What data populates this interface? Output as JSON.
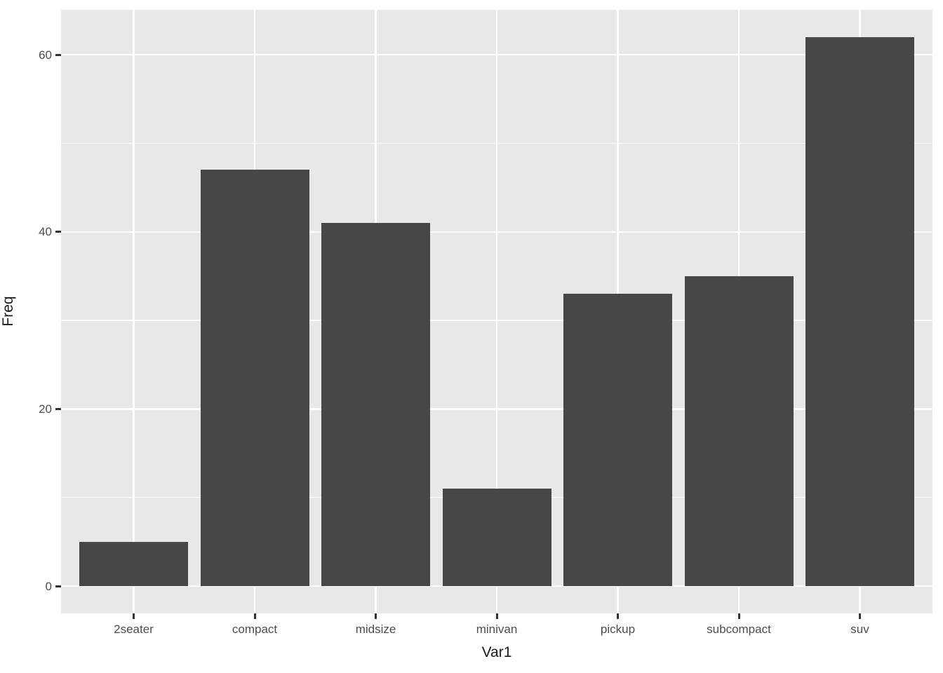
{
  "chart_data": {
    "type": "bar",
    "title": "",
    "xlabel": "Var1",
    "ylabel": "Freq",
    "categories": [
      "2seater",
      "compact",
      "midsize",
      "minivan",
      "pickup",
      "subcompact",
      "suv"
    ],
    "values": [
      5,
      47,
      41,
      11,
      33,
      35,
      62
    ],
    "yticks": [
      0,
      20,
      40,
      60
    ],
    "minor_yticks": [
      10,
      30,
      50
    ],
    "ylim": [
      -3.1,
      65.1
    ],
    "grid": "major-horizontal, minor-horizontal, major-vertical-at-category-centers",
    "legend": "none",
    "style": "ggplot2-grey-theme",
    "colors": {
      "bar_fill": "#474747",
      "panel_background": "#e8e8e8",
      "gridline": "#ffffff",
      "tick_label": "#4d4d4d",
      "axis_title": "#1a1a1a",
      "tick_mark": "#333333",
      "outer_background": "#ffffff"
    }
  }
}
